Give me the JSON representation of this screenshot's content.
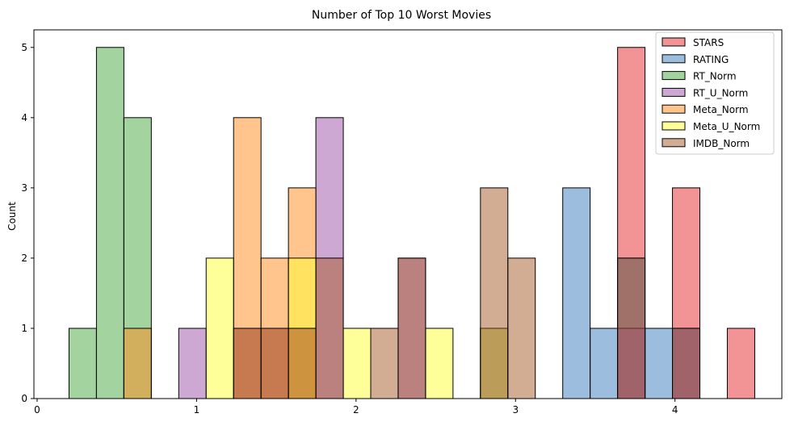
{
  "chart_data": {
    "type": "bar",
    "title": "Number of Top 10 Worst Movies",
    "xlabel": "",
    "ylabel": "Count",
    "xlim": [
      -0.02,
      4.67
    ],
    "ylim": [
      0,
      5.25
    ],
    "xticks": [
      0,
      1,
      2,
      3,
      4
    ],
    "yticks": [
      0,
      1,
      2,
      3,
      4,
      5
    ],
    "grid": false,
    "legend_position": "top-right",
    "bins": {
      "start": 0.2,
      "width": 0.172,
      "count": 25
    },
    "series": [
      {
        "name": "STARS",
        "color": "#e6292b",
        "values": [
          0,
          0,
          0,
          0,
          0,
          0,
          0,
          0,
          0,
          0,
          0,
          0,
          0,
          0,
          0,
          0,
          0,
          0,
          0,
          0,
          5,
          0,
          3,
          0,
          1
        ]
      },
      {
        "name": "RATING",
        "color": "#3b7bbd",
        "values": [
          0,
          0,
          0,
          0,
          0,
          0,
          0,
          0,
          0,
          0,
          0,
          0,
          0,
          0,
          0,
          1,
          0,
          0,
          3,
          1,
          2,
          1,
          1,
          0,
          0
        ]
      },
      {
        "name": "RT_Norm",
        "color": "#47a83d",
        "values": [
          1,
          5,
          4,
          0,
          0,
          0,
          0,
          0,
          0,
          0,
          0,
          0,
          0,
          0,
          0,
          0,
          0,
          0,
          0,
          0,
          0,
          0,
          0,
          0,
          0
        ]
      },
      {
        "name": "RT_U_Norm",
        "color": "#9a51a8",
        "values": [
          0,
          0,
          0,
          0,
          1,
          0,
          1,
          1,
          1,
          4,
          0,
          0,
          2,
          0,
          0,
          0,
          0,
          0,
          0,
          0,
          1,
          0,
          1,
          0,
          0
        ]
      },
      {
        "name": "Meta_Norm",
        "color": "#ff8c1a",
        "values": [
          0,
          0,
          1,
          0,
          0,
          0,
          4,
          2,
          3,
          0,
          0,
          0,
          0,
          0,
          0,
          0,
          0,
          0,
          0,
          0,
          0,
          0,
          0,
          0,
          0
        ]
      },
      {
        "name": "Meta_U_Norm",
        "color": "#ffff33",
        "values": [
          0,
          0,
          0,
          0,
          0,
          2,
          0,
          0,
          2,
          0,
          1,
          0,
          0,
          1,
          0,
          1,
          0,
          0,
          0,
          0,
          0,
          0,
          0,
          0,
          0
        ]
      },
      {
        "name": "IMDB_Norm",
        "color": "#a85a2a",
        "values": [
          0,
          0,
          0,
          0,
          0,
          0,
          1,
          1,
          1,
          2,
          0,
          1,
          2,
          0,
          0,
          3,
          2,
          0,
          0,
          0,
          2,
          0,
          1,
          0,
          0
        ]
      }
    ]
  }
}
